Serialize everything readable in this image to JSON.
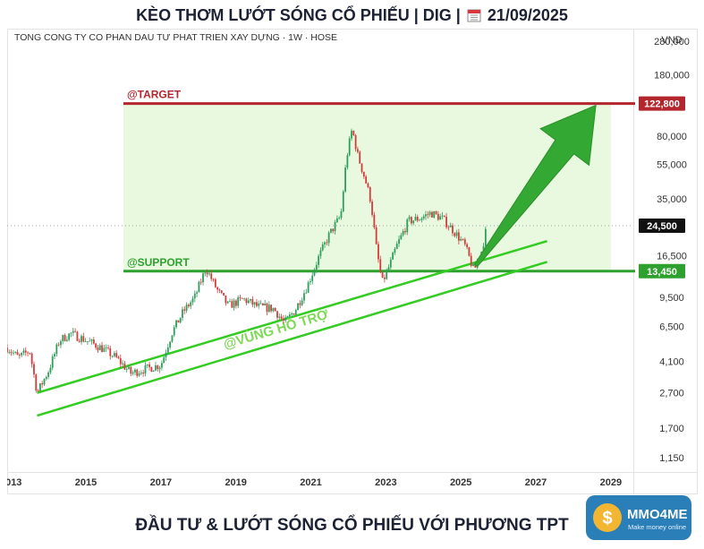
{
  "header": {
    "prefix": "KÈO THƠM LƯỚT SÓNG CỔ PHIẾU | DIG |",
    "date": "21/09/2025"
  },
  "footer": {
    "title": "ĐẦU TƯ & LƯỚT SÓNG CỔ PHIẾU VỚI PHƯƠNG TPT"
  },
  "logo": {
    "name": "MMO4ME",
    "tagline": "Make money online",
    "icon": "dollar-sign-icon"
  },
  "colors": {
    "target": "#b3262d",
    "support": "#2ea02e",
    "zone_fill": "#e8f9e0",
    "trend": "#33cc22",
    "arrow": "#33a833",
    "candle_up": "#2e9e5b",
    "candle_down": "#d43c3c",
    "header_text": "#1c2233",
    "logo_bg": "#2a7fb8"
  },
  "chart_data": {
    "type": "candlestick",
    "subtitle": "TONG CONG TY CO PHAN DAU TƯ PHAT TRIEN XAY DỰNG · 1W · HOSE",
    "currency": "VND",
    "y_scale": "log",
    "ylim": [
      950,
      330000
    ],
    "xlim": [
      2012.9,
      2029.6
    ],
    "x_ticks": [
      2013,
      2015,
      2017,
      2019,
      2021,
      2023,
      2025,
      2027,
      2029
    ],
    "y_ticks": [
      {
        "value": 280000,
        "label": "280,000"
      },
      {
        "value": 180000,
        "label": "180,000"
      },
      {
        "value": 80000,
        "label": "80,000"
      },
      {
        "value": 55000,
        "label": "55,000"
      },
      {
        "value": 35000,
        "label": "35,000"
      },
      {
        "value": 16500,
        "label": "16,500"
      },
      {
        "value": 9500,
        "label": "9,500"
      },
      {
        "value": 6500,
        "label": "6,500"
      },
      {
        "value": 4100,
        "label": "4,100"
      },
      {
        "value": 2700,
        "label": "2,700"
      },
      {
        "value": 1700,
        "label": "1,700"
      },
      {
        "value": 1150,
        "label": "1,150"
      }
    ],
    "price_badges": [
      {
        "value": 122800,
        "label": "122,800",
        "color": "#b3262d"
      },
      {
        "value": 24500,
        "label": "24,500",
        "color": "#111111"
      },
      {
        "value": 13450,
        "label": "13,450",
        "color": "#2ea02e"
      }
    ],
    "current_price": 24500,
    "levels": [
      {
        "name": "target",
        "label": "@TARGET",
        "value": 122800,
        "x_start": 2016.0
      },
      {
        "name": "support",
        "label": "@SUPPORT",
        "value": 13450,
        "x_start": 2016.0
      }
    ],
    "zone": {
      "from": 13450,
      "to": 122800,
      "x_start": 2016.0,
      "x_end": 2029.0
    },
    "support_zone_label": "@VÙNG HỖ TRỢ",
    "channel_lines": [
      {
        "x1": 2013.7,
        "y1": 2700,
        "x2": 2027.3,
        "y2": 20000
      },
      {
        "x1": 2013.7,
        "y1": 2000,
        "x2": 2027.3,
        "y2": 15200
      }
    ],
    "arrow": {
      "x1": 2025.4,
      "y1": 14500,
      "x2": 2028.6,
      "y2": 120000
    },
    "price_path": [
      [
        2012.9,
        4900
      ],
      [
        2013.2,
        4300
      ],
      [
        2013.5,
        4700
      ],
      [
        2013.7,
        2700
      ],
      [
        2014.0,
        3600
      ],
      [
        2014.3,
        5400
      ],
      [
        2014.6,
        5900
      ],
      [
        2015.0,
        5400
      ],
      [
        2015.4,
        4900
      ],
      [
        2015.8,
        4300
      ],
      [
        2016.2,
        3500
      ],
      [
        2016.6,
        3700
      ],
      [
        2017.0,
        3900
      ],
      [
        2017.3,
        6000
      ],
      [
        2017.6,
        7900
      ],
      [
        2017.9,
        9500
      ],
      [
        2018.2,
        14000
      ],
      [
        2018.5,
        10500
      ],
      [
        2018.8,
        8500
      ],
      [
        2019.2,
        9300
      ],
      [
        2019.6,
        8400
      ],
      [
        2020.0,
        8200
      ],
      [
        2020.3,
        6800
      ],
      [
        2020.6,
        8200
      ],
      [
        2020.9,
        11000
      ],
      [
        2021.2,
        16000
      ],
      [
        2021.5,
        22000
      ],
      [
        2021.8,
        28000
      ],
      [
        2021.95,
        60000
      ],
      [
        2022.1,
        88000
      ],
      [
        2022.25,
        62000
      ],
      [
        2022.45,
        45000
      ],
      [
        2022.6,
        34000
      ],
      [
        2022.75,
        18000
      ],
      [
        2022.9,
        11500
      ],
      [
        2023.1,
        14500
      ],
      [
        2023.3,
        19000
      ],
      [
        2023.6,
        26000
      ],
      [
        2023.9,
        27000
      ],
      [
        2024.2,
        29000
      ],
      [
        2024.5,
        27000
      ],
      [
        2024.8,
        23000
      ],
      [
        2025.1,
        19000
      ],
      [
        2025.35,
        13500
      ],
      [
        2025.55,
        17500
      ],
      [
        2025.7,
        24500
      ]
    ]
  }
}
